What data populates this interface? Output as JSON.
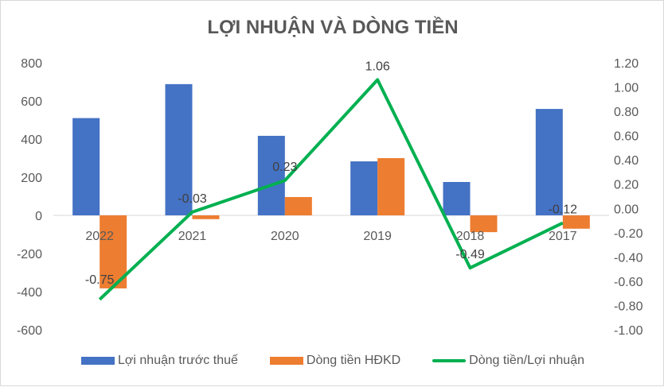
{
  "chart_data": {
    "type": "bar",
    "title": "LỢI NHUẬN VÀ DÒNG TIỀN",
    "categories": [
      "2022",
      "2021",
      "2020",
      "2019",
      "2018",
      "2017"
    ],
    "series": [
      {
        "name": "Lợi nhuận trước thuế",
        "type": "bar",
        "axis": "left",
        "color": "#4472C4",
        "values": [
          510,
          688,
          417,
          283,
          175,
          558
        ]
      },
      {
        "name": "Dòng tiền HĐKD",
        "type": "bar",
        "axis": "left",
        "color": "#ED7D31",
        "values": [
          -383,
          -20,
          96,
          300,
          -88,
          -70
        ]
      },
      {
        "name": "Dòng tiền/Lợi nhuận",
        "type": "line",
        "axis": "right",
        "color": "#00B050",
        "values": [
          -0.75,
          -0.03,
          0.23,
          1.06,
          -0.49,
          -0.12
        ],
        "labels": [
          "-0.75",
          "-0.03",
          "0.23",
          "1.06",
          "-0.49",
          "-0.12"
        ]
      }
    ],
    "left_axis": {
      "ylim": [
        -600,
        800
      ],
      "ticks": [
        "800",
        "600",
        "400",
        "200",
        "0",
        "-200",
        "-400",
        "-600"
      ]
    },
    "right_axis": {
      "ylim": [
        -1.0,
        1.2
      ],
      "ticks": [
        "1.20",
        "1.00",
        "0.80",
        "0.60",
        "0.40",
        "0.20",
        "0.00",
        "-0.20",
        "-0.40",
        "-0.60",
        "-0.80",
        "-1.00"
      ]
    },
    "grid": false,
    "legend": "bottom"
  }
}
